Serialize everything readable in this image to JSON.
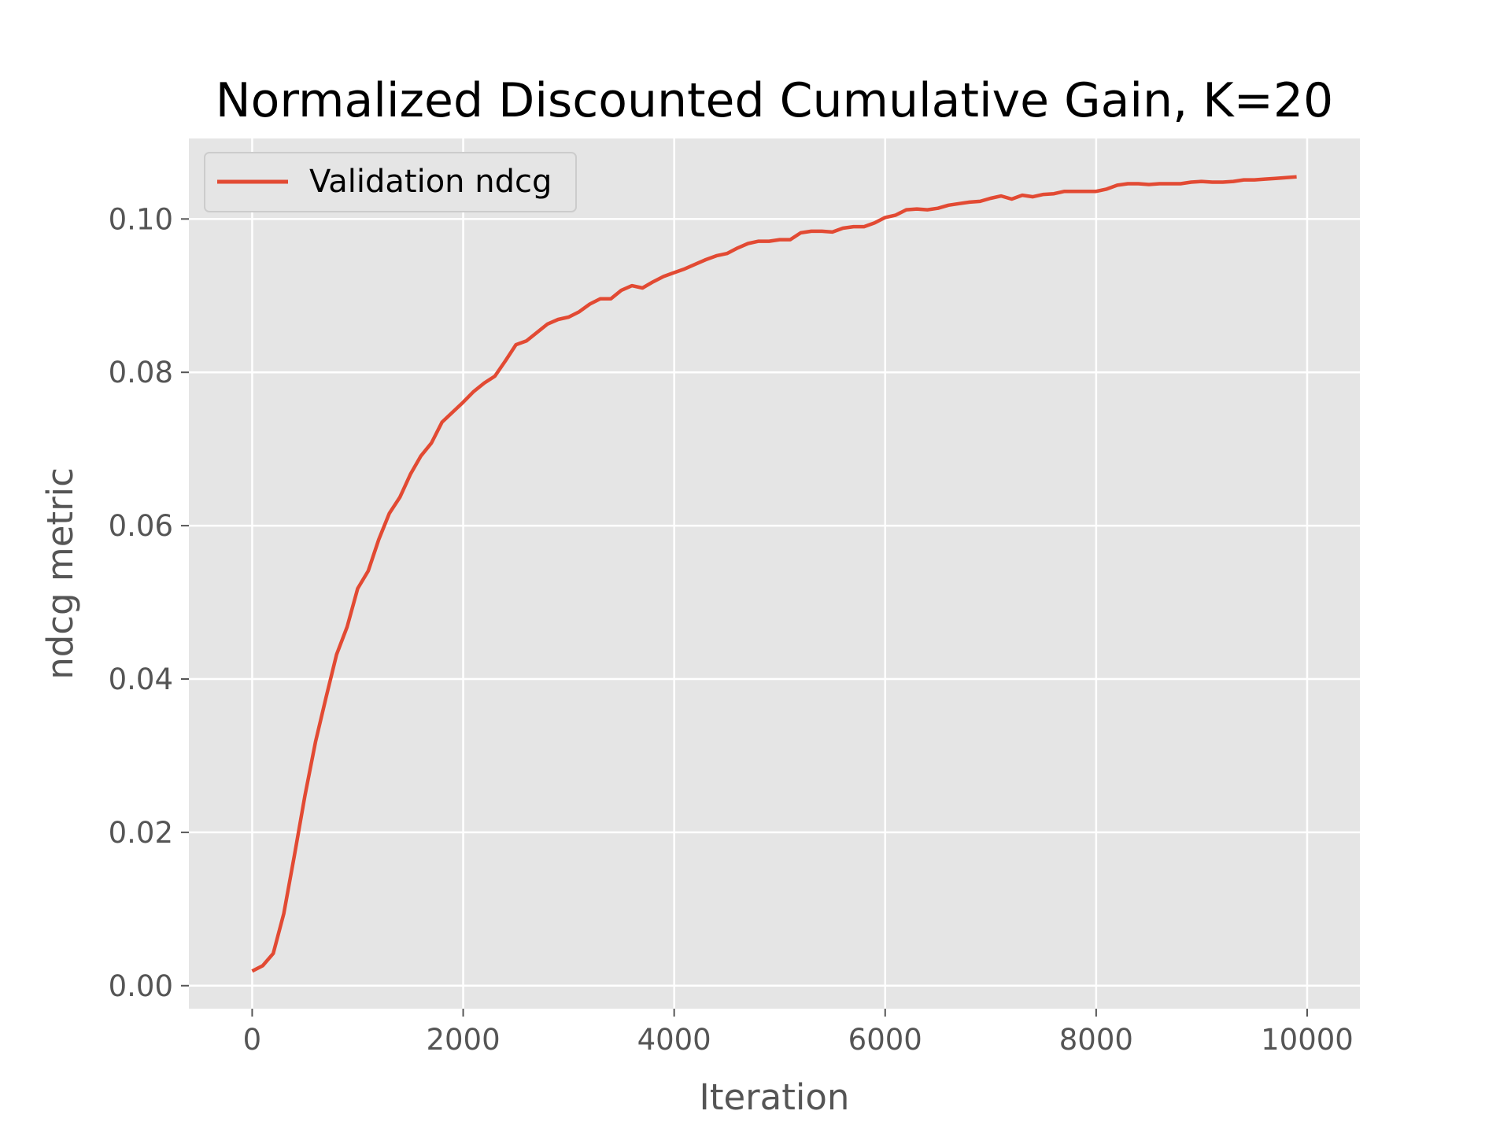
{
  "chart_data": {
    "type": "line",
    "title": "Normalized Discounted Cumulative Gain, K=20",
    "xlabel": "Iteration",
    "ylabel": "ndcg metric",
    "xlim": [
      -600,
      10500
    ],
    "ylim": [
      -0.003,
      0.1105
    ],
    "xticks": [
      0,
      2000,
      4000,
      6000,
      8000,
      10000
    ],
    "xtick_labels": [
      "0",
      "2000",
      "4000",
      "6000",
      "8000",
      "10000"
    ],
    "yticks": [
      0.0,
      0.02,
      0.04,
      0.06,
      0.08,
      0.1
    ],
    "ytick_labels": [
      "0.00",
      "0.02",
      "0.04",
      "0.06",
      "0.08",
      "0.10"
    ],
    "grid": true,
    "legend_position": "top-left",
    "series": [
      {
        "name": "Validation ndcg",
        "color": "#E24A33",
        "x": [
          0,
          100,
          200,
          300,
          400,
          500,
          600,
          700,
          800,
          900,
          1000,
          1100,
          1200,
          1300,
          1400,
          1500,
          1600,
          1700,
          1800,
          1900,
          2000,
          2100,
          2200,
          2300,
          2400,
          2500,
          2600,
          2700,
          2800,
          2900,
          3000,
          3100,
          3200,
          3300,
          3400,
          3500,
          3600,
          3700,
          3800,
          3900,
          4000,
          4100,
          4200,
          4300,
          4400,
          4500,
          4600,
          4700,
          4800,
          4900,
          5000,
          5100,
          5200,
          5300,
          5400,
          5500,
          5600,
          5700,
          5800,
          5900,
          6000,
          6100,
          6200,
          6300,
          6400,
          6500,
          6600,
          6700,
          6800,
          6900,
          7000,
          7100,
          7200,
          7300,
          7400,
          7500,
          7600,
          7700,
          7800,
          7900,
          8000,
          8100,
          8200,
          8300,
          8400,
          8500,
          8600,
          8700,
          8800,
          8900,
          9000,
          9100,
          9200,
          9300,
          9400,
          9500,
          9600,
          9700,
          9800,
          9900
        ],
        "values": [
          0.0019,
          0.0026,
          0.0042,
          0.0094,
          0.017,
          0.0248,
          0.0318,
          0.0376,
          0.0432,
          0.0468,
          0.0518,
          0.0541,
          0.0582,
          0.0616,
          0.0637,
          0.0667,
          0.0691,
          0.0708,
          0.0735,
          0.0748,
          0.0761,
          0.0775,
          0.0786,
          0.0795,
          0.0815,
          0.0836,
          0.0841,
          0.0852,
          0.0863,
          0.0869,
          0.0872,
          0.0879,
          0.0889,
          0.0896,
          0.0896,
          0.0907,
          0.0913,
          0.091,
          0.0918,
          0.0925,
          0.093,
          0.0935,
          0.0941,
          0.0947,
          0.0952,
          0.0955,
          0.0962,
          0.0968,
          0.0971,
          0.0971,
          0.0973,
          0.0973,
          0.0982,
          0.0984,
          0.0984,
          0.0983,
          0.0988,
          0.099,
          0.099,
          0.0995,
          0.1002,
          0.1005,
          0.1012,
          0.1013,
          0.1012,
          0.1014,
          0.1018,
          0.102,
          0.1022,
          0.1023,
          0.1027,
          0.103,
          0.1026,
          0.1031,
          0.1029,
          0.1032,
          0.1033,
          0.1036,
          0.1036,
          0.1036,
          0.1036,
          0.1039,
          0.1044,
          0.1046,
          0.1046,
          0.1045,
          0.1046,
          0.1046,
          0.1046,
          0.1048,
          0.1049,
          0.1048,
          0.1048,
          0.1049,
          0.1051,
          0.1051,
          0.1052,
          0.1053,
          0.1054,
          0.1055
        ]
      }
    ]
  }
}
